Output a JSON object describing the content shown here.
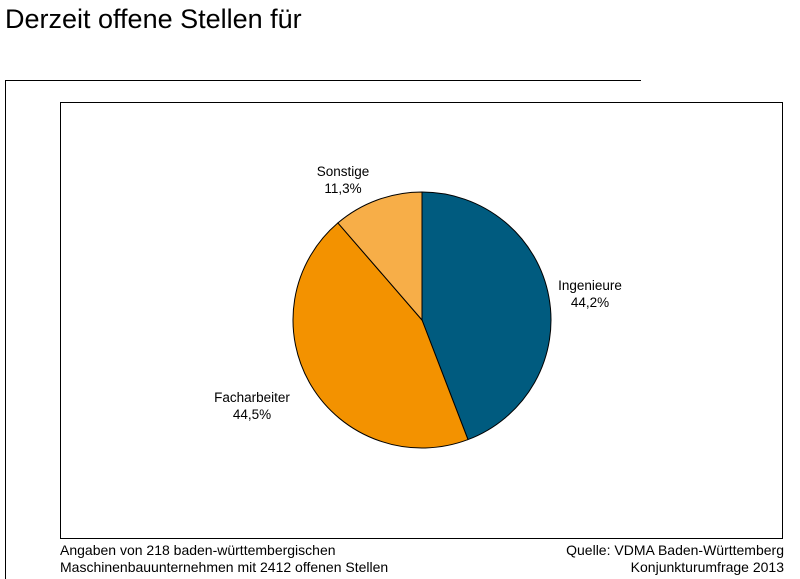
{
  "title": "Derzeit offene Stellen für",
  "footnote": {
    "line1": "Angaben von 218 baden-württembergischen",
    "line2": "Maschinenbauunternehmen mit 2412 offenen Stellen"
  },
  "source": {
    "line1": "Quelle: VDMA Baden-Württemberg",
    "line2": "Konjunkturumfrage 2013"
  },
  "chart_data": {
    "type": "pie",
    "title": "Derzeit offene Stellen für",
    "unit": "%",
    "slices": [
      {
        "label": "Ingenieure",
        "value": 44.2,
        "value_label": "44,2%",
        "color": "#005b7f"
      },
      {
        "label": "Facharbeiter",
        "value": 44.5,
        "value_label": "44,5%",
        "color": "#f39200"
      },
      {
        "label": "Sonstige",
        "value": 11.3,
        "value_label": "11,3%",
        "color": "#f7ae48"
      }
    ]
  }
}
